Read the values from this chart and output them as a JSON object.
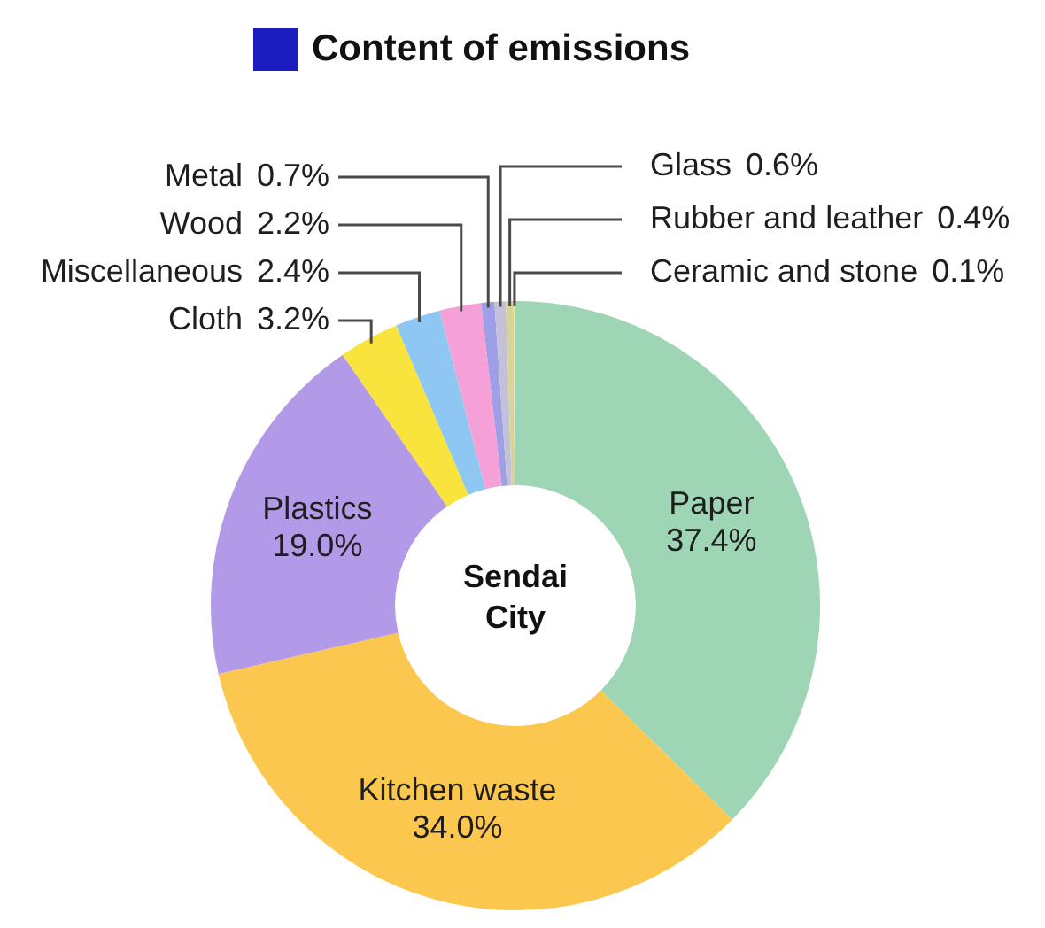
{
  "chart_data": {
    "type": "donut",
    "title": "Content of emissions",
    "categories": [
      "Paper",
      "Kitchen waste",
      "Plastics",
      "Cloth",
      "Miscellaneous",
      "Wood",
      "Metal",
      "Glass",
      "Rubber and leather",
      "Ceramic and stone"
    ],
    "values": [
      37.4,
      34.0,
      19.0,
      3.2,
      2.4,
      2.2,
      0.7,
      0.6,
      0.4,
      0.1
    ],
    "value_labels": [
      "37.4%",
      "34.0%",
      "19.0%",
      "3.2%",
      "2.4%",
      "2.2%",
      "0.7%",
      "0.6%",
      "0.4%",
      "0.1%"
    ],
    "colors": [
      "#9dd5b5",
      "#fcc74f",
      "#b39ae8",
      "#f9e43d",
      "#8ec8f2",
      "#f5a0d6",
      "#9f9fe8",
      "#c4c0d8",
      "#d9d39a",
      "#efe7a0"
    ],
    "annotations": [
      "Sendai City"
    ],
    "legend": false
  }
}
